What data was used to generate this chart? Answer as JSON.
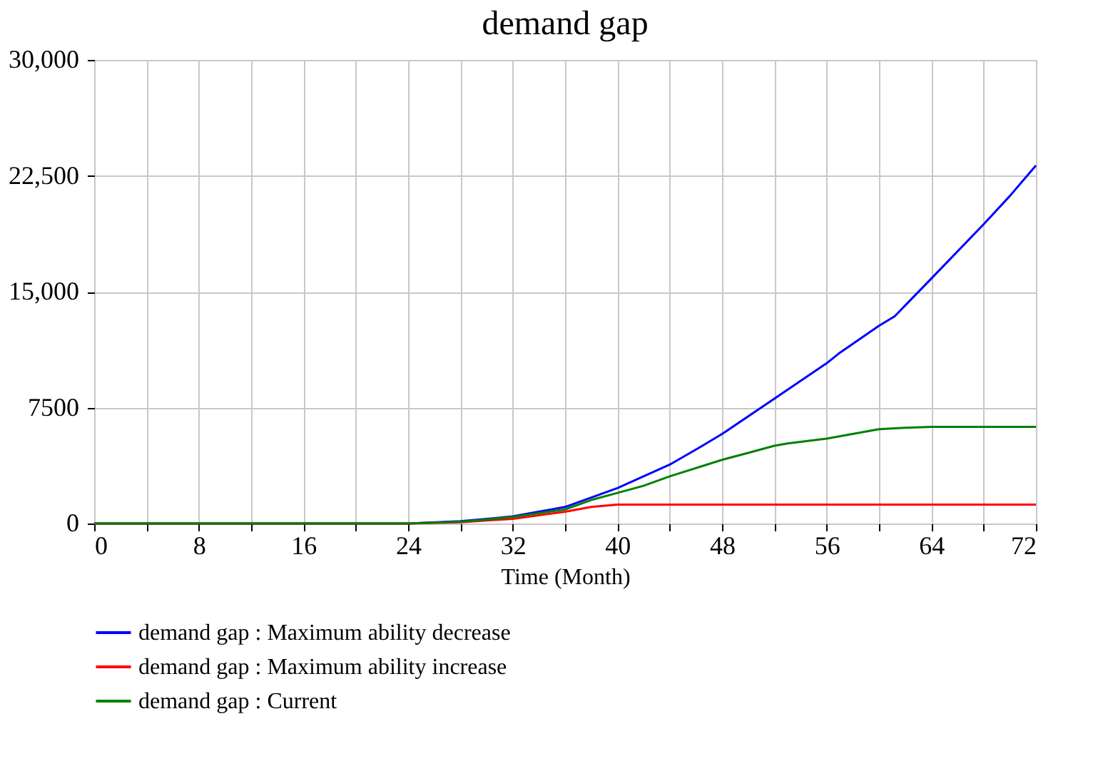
{
  "chart_data": {
    "type": "line",
    "title": "demand gap",
    "xlabel": "Time (Month)",
    "xlim": [
      0,
      72
    ],
    "xticks": [
      0,
      {
        "value": 4,
        "label": null
      },
      8,
      {
        "value": 12,
        "label": null
      },
      16,
      {
        "value": 20,
        "label": null
      },
      24,
      {
        "value": 28,
        "label": null
      },
      32,
      {
        "value": 36,
        "label": null
      },
      40,
      {
        "value": 44,
        "label": null
      },
      48,
      {
        "value": 52,
        "label": null
      },
      56,
      {
        "value": 60,
        "label": null
      },
      64,
      {
        "value": 68,
        "label": null
      },
      72
    ],
    "ylim": [
      0,
      30000
    ],
    "yticks": [
      0,
      7500,
      {
        "value": 15000,
        "label": "15,000"
      },
      {
        "value": 22500,
        "label": "22,500"
      },
      {
        "value": 30000,
        "label": "30,000"
      }
    ],
    "grid": true,
    "legend": "bottom",
    "line_style": "solid",
    "series": [
      {
        "name": "demand gap : Maximum ability decrease",
        "color": "#0000ff",
        "x": [
          0,
          24,
          28,
          30.5,
          32,
          36,
          40,
          44,
          46.2,
          48,
          52,
          56,
          56.9,
          60,
          61.2,
          64,
          68,
          70,
          72
        ],
        "values": [
          0,
          0,
          150,
          330,
          460,
          1070,
          2290,
          3810,
          4880,
          5790,
          8080,
          10370,
          10980,
          12800,
          13410,
          15850,
          19360,
          21190,
          23170
        ]
      },
      {
        "name": "demand gap : Maximum ability increase",
        "color": "#ff0000",
        "x": [
          0,
          24,
          28,
          30,
          32,
          36,
          38,
          40,
          72
        ],
        "values": [
          0,
          0,
          80,
          200,
          300,
          760,
          1070,
          1220,
          1220
        ]
      },
      {
        "name": "demand gap : Current",
        "color": "#008000",
        "x": [
          0,
          24,
          28,
          30,
          32,
          36,
          38,
          40,
          42,
          44,
          48,
          50,
          52,
          53,
          56,
          60,
          62,
          64,
          72
        ],
        "values": [
          0,
          0,
          120,
          250,
          430,
          910,
          1520,
          1980,
          2440,
          3050,
          4120,
          4570,
          5030,
          5180,
          5490,
          6100,
          6200,
          6250,
          6250
        ]
      }
    ]
  }
}
